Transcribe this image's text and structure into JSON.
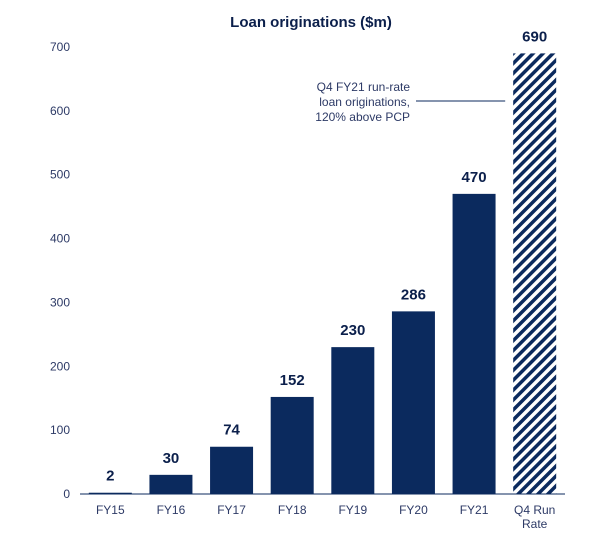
{
  "chart_data": {
    "type": "bar",
    "title": "Loan originations ($m)",
    "xlabel": "",
    "ylabel": "",
    "ylim": [
      0,
      700
    ],
    "yticks": [
      0,
      100,
      200,
      300,
      400,
      500,
      600,
      700
    ],
    "categories": [
      "FY15",
      "FY16",
      "FY17",
      "FY18",
      "FY19",
      "FY20",
      "FY21",
      "Q4 Run Rate"
    ],
    "category_lines": [
      [
        "FY15"
      ],
      [
        "FY16"
      ],
      [
        "FY17"
      ],
      [
        "FY18"
      ],
      [
        "FY19"
      ],
      [
        "FY20"
      ],
      [
        "FY21"
      ],
      [
        "Q4 Run",
        "Rate"
      ]
    ],
    "values": [
      2,
      30,
      74,
      152,
      230,
      286,
      470,
      690
    ],
    "labels": [
      "2",
      "30",
      "74",
      "152",
      "230",
      "286",
      "470",
      "690"
    ],
    "hatched": [
      false,
      false,
      false,
      false,
      false,
      false,
      false,
      true
    ],
    "annotation": {
      "lines": [
        "Q4 FY21 run-rate",
        "loan originations,",
        "120% above PCP"
      ],
      "target_category": "Q4 Run Rate"
    },
    "colors": {
      "bar": "#0b2a5e",
      "text": "#0b1f4b",
      "axis": "#2d3a66"
    }
  }
}
